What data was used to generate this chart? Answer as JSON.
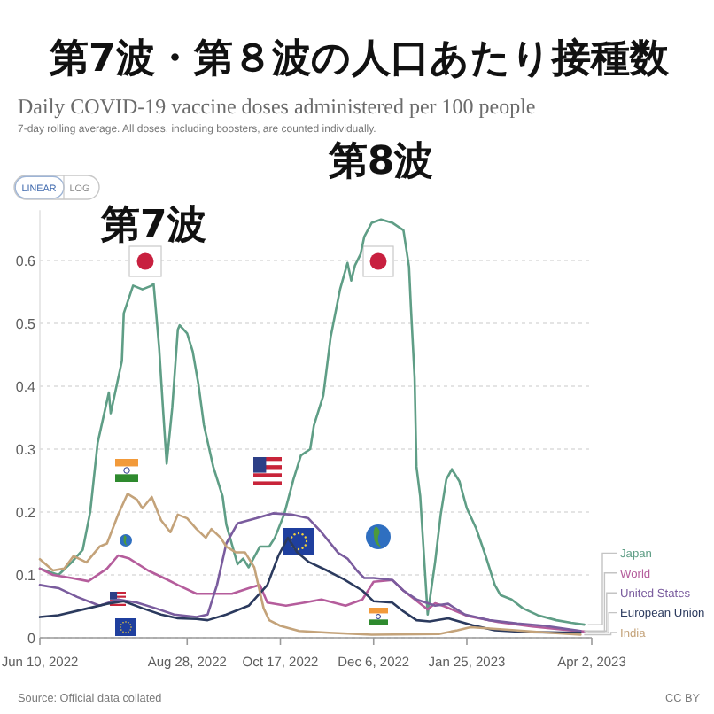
{
  "chart_data": {
    "type": "line",
    "title": "第7波・第８波の人口あたり接種数",
    "subtitle": "Daily COVID-19 vaccine doses administered per 100 people",
    "annotations": [
      "7-day rolling average. All doses, including boosters, are counted individually.",
      "LINEAR",
      "LOG",
      {
        "text": "第7波",
        "x": "2022-08-10",
        "y": 0.563
      },
      {
        "text": "第8波",
        "x": "2022-12-10",
        "y": 0.665
      },
      "Source: Official data collated",
      "CC BY"
    ],
    "xlim": [
      "2022-06-10",
      "2023-04-02"
    ],
    "xticks": [
      {
        "value": "2022-06-10",
        "label": "Jun 10, 2022"
      },
      {
        "value": "2022-08-28",
        "label": "Aug 28, 2022"
      },
      {
        "value": "2022-10-17",
        "label": "Oct 17, 2022"
      },
      {
        "value": "2022-12-06",
        "label": "Dec 6, 2022"
      },
      {
        "value": "2023-01-25",
        "label": "Jan 25, 2023"
      },
      {
        "value": "2023-04-02",
        "label": "Apr 2, 2023"
      }
    ],
    "ylim": [
      0,
      0.68
    ],
    "yticks": [
      0,
      0.1,
      0.2,
      0.3,
      0.4,
      0.5,
      0.6
    ],
    "grid": "y",
    "legend": "right",
    "series": [
      {
        "name": "Japan",
        "color": "#5f9e86",
        "x": [
          "2022-06-10",
          "2022-06-20",
          "2022-06-27",
          "2022-07-03",
          "2022-07-07",
          "2022-07-11",
          "2022-07-17",
          "2022-07-18",
          "2022-07-24",
          "2022-07-25",
          "2022-07-30",
          "2022-08-04",
          "2022-08-09",
          "2022-08-10",
          "2022-08-13",
          "2022-08-15",
          "2022-08-17",
          "2022-08-20",
          "2022-08-23",
          "2022-08-24",
          "2022-08-28",
          "2022-08-31",
          "2022-09-03",
          "2022-09-06",
          "2022-09-11",
          "2022-09-16",
          "2022-09-18",
          "2022-09-24",
          "2022-09-27",
          "2022-09-30",
          "2022-10-06",
          "2022-10-11",
          "2022-10-14",
          "2022-10-19",
          "2022-10-24",
          "2022-10-28",
          "2022-11-02",
          "2022-11-04",
          "2022-11-09",
          "2022-11-13",
          "2022-11-18",
          "2022-11-22",
          "2022-11-24",
          "2022-11-26",
          "2022-11-29",
          "2022-12-01",
          "2022-12-05",
          "2022-12-10",
          "2022-12-16",
          "2022-12-22",
          "2022-12-25",
          "2022-12-26",
          "2022-12-28",
          "2022-12-29",
          "2022-12-31",
          "2023-01-04",
          "2023-01-08",
          "2023-01-11",
          "2023-01-14",
          "2023-01-17",
          "2023-01-21",
          "2023-01-25",
          "2023-01-30",
          "2023-02-04",
          "2023-02-09",
          "2023-02-12",
          "2023-02-18",
          "2023-02-24",
          "2023-03-04",
          "2023-03-14",
          "2023-03-22",
          "2023-03-29"
        ],
        "values": [
          0.11,
          0.1,
          0.12,
          0.14,
          0.2,
          0.31,
          0.39,
          0.357,
          0.44,
          0.516,
          0.56,
          0.554,
          0.56,
          0.563,
          0.46,
          0.366,
          0.277,
          0.366,
          0.49,
          0.497,
          0.484,
          0.455,
          0.404,
          0.338,
          0.272,
          0.225,
          0.18,
          0.117,
          0.126,
          0.112,
          0.145,
          0.145,
          0.159,
          0.196,
          0.252,
          0.29,
          0.3,
          0.338,
          0.385,
          0.479,
          0.554,
          0.596,
          0.568,
          0.592,
          0.61,
          0.638,
          0.66,
          0.665,
          0.66,
          0.648,
          0.59,
          0.526,
          0.413,
          0.272,
          0.225,
          0.037,
          0.121,
          0.196,
          0.252,
          0.268,
          0.249,
          0.206,
          0.174,
          0.131,
          0.084,
          0.068,
          0.061,
          0.047,
          0.036,
          0.028,
          0.024,
          0.021
        ]
      },
      {
        "name": "World",
        "color": "#b55d9c",
        "x": [
          "2022-06-10",
          "2022-06-17",
          "2022-06-27",
          "2022-07-06",
          "2022-07-16",
          "2022-07-22",
          "2022-07-28",
          "2022-08-07",
          "2022-08-17",
          "2022-08-23",
          "2022-09-02",
          "2022-09-11",
          "2022-09-21",
          "2022-09-30",
          "2022-10-06",
          "2022-10-10",
          "2022-10-20",
          "2022-10-30",
          "2022-11-08",
          "2022-11-21",
          "2022-11-30",
          "2022-12-06",
          "2022-12-16",
          "2022-12-22",
          "2023-01-04",
          "2023-01-08",
          "2023-01-13",
          "2023-01-25",
          "2023-02-11",
          "2023-03-01",
          "2023-03-21",
          "2023-03-29"
        ],
        "values": [
          0.11,
          0.1,
          0.095,
          0.09,
          0.11,
          0.131,
          0.126,
          0.107,
          0.093,
          0.084,
          0.07,
          0.07,
          0.07,
          0.079,
          0.084,
          0.056,
          0.051,
          0.056,
          0.061,
          0.051,
          0.061,
          0.089,
          0.092,
          0.075,
          0.045,
          0.055,
          0.05,
          0.035,
          0.025,
          0.018,
          0.012,
          0.01
        ]
      },
      {
        "name": "United States",
        "color": "#7a5c9e",
        "x": [
          "2022-06-10",
          "2022-06-20",
          "2022-06-30",
          "2022-07-12",
          "2022-07-22",
          "2022-08-01",
          "2022-08-11",
          "2022-08-21",
          "2022-09-02",
          "2022-09-08",
          "2022-09-13",
          "2022-09-18",
          "2022-09-24",
          "2022-10-04",
          "2022-10-13",
          "2022-10-23",
          "2022-11-01",
          "2022-11-08",
          "2022-11-17",
          "2022-11-22",
          "2022-11-27",
          "2022-12-01",
          "2022-12-06",
          "2022-12-16",
          "2022-12-22",
          "2022-12-29",
          "2023-01-08",
          "2023-01-15",
          "2023-01-24",
          "2023-02-06",
          "2023-02-21",
          "2023-03-08",
          "2023-03-27"
        ],
        "values": [
          0.084,
          0.079,
          0.065,
          0.051,
          0.061,
          0.056,
          0.047,
          0.037,
          0.033,
          0.037,
          0.084,
          0.15,
          0.182,
          0.19,
          0.198,
          0.196,
          0.19,
          0.168,
          0.135,
          0.126,
          0.107,
          0.095,
          0.095,
          0.092,
          0.075,
          0.061,
          0.051,
          0.054,
          0.037,
          0.028,
          0.023,
          0.019,
          0.011
        ]
      },
      {
        "name": "European Union",
        "color": "#2b3a5e",
        "x": [
          "2022-06-10",
          "2022-06-20",
          "2022-07-06",
          "2022-07-16",
          "2022-07-25",
          "2022-08-04",
          "2022-08-14",
          "2022-08-23",
          "2022-09-02",
          "2022-09-08",
          "2022-09-18",
          "2022-09-30",
          "2022-10-10",
          "2022-10-16",
          "2022-10-21",
          "2022-10-26",
          "2022-11-01",
          "2022-11-11",
          "2022-11-20",
          "2022-11-30",
          "2022-12-06",
          "2022-12-16",
          "2022-12-22",
          "2022-12-29",
          "2023-01-05",
          "2023-01-15",
          "2023-01-28",
          "2023-02-09",
          "2023-02-28",
          "2023-03-27"
        ],
        "values": [
          0.033,
          0.036,
          0.047,
          0.054,
          0.058,
          0.047,
          0.037,
          0.031,
          0.03,
          0.028,
          0.037,
          0.051,
          0.084,
          0.131,
          0.159,
          0.136,
          0.121,
          0.107,
          0.093,
          0.075,
          0.058,
          0.056,
          0.042,
          0.028,
          0.026,
          0.031,
          0.02,
          0.012,
          0.009,
          0.008
        ]
      },
      {
        "name": "India",
        "color": "#c4a37a",
        "x": [
          "2022-06-10",
          "2022-06-17",
          "2022-06-23",
          "2022-06-28",
          "2022-07-05",
          "2022-07-12",
          "2022-07-16",
          "2022-07-22",
          "2022-07-27",
          "2022-08-01",
          "2022-08-04",
          "2022-08-09",
          "2022-08-14",
          "2022-08-19",
          "2022-08-23",
          "2022-08-28",
          "2022-09-02",
          "2022-09-07",
          "2022-09-10",
          "2022-09-15",
          "2022-09-18",
          "2022-09-23",
          "2022-09-28",
          "2022-10-03",
          "2022-10-08",
          "2022-10-11",
          "2022-10-17",
          "2022-10-27",
          "2022-11-12",
          "2022-12-05",
          "2023-01-10",
          "2023-01-20",
          "2023-01-27",
          "2023-02-15",
          "2023-03-10",
          "2023-03-27"
        ],
        "values": [
          0.125,
          0.107,
          0.11,
          0.13,
          0.12,
          0.145,
          0.15,
          0.196,
          0.229,
          0.22,
          0.206,
          0.224,
          0.187,
          0.168,
          0.196,
          0.19,
          0.173,
          0.159,
          0.173,
          0.159,
          0.145,
          0.136,
          0.136,
          0.112,
          0.047,
          0.028,
          0.019,
          0.011,
          0.008,
          0.005,
          0.006,
          0.012,
          0.017,
          0.013,
          0.008,
          0.005
        ]
      }
    ]
  }
}
